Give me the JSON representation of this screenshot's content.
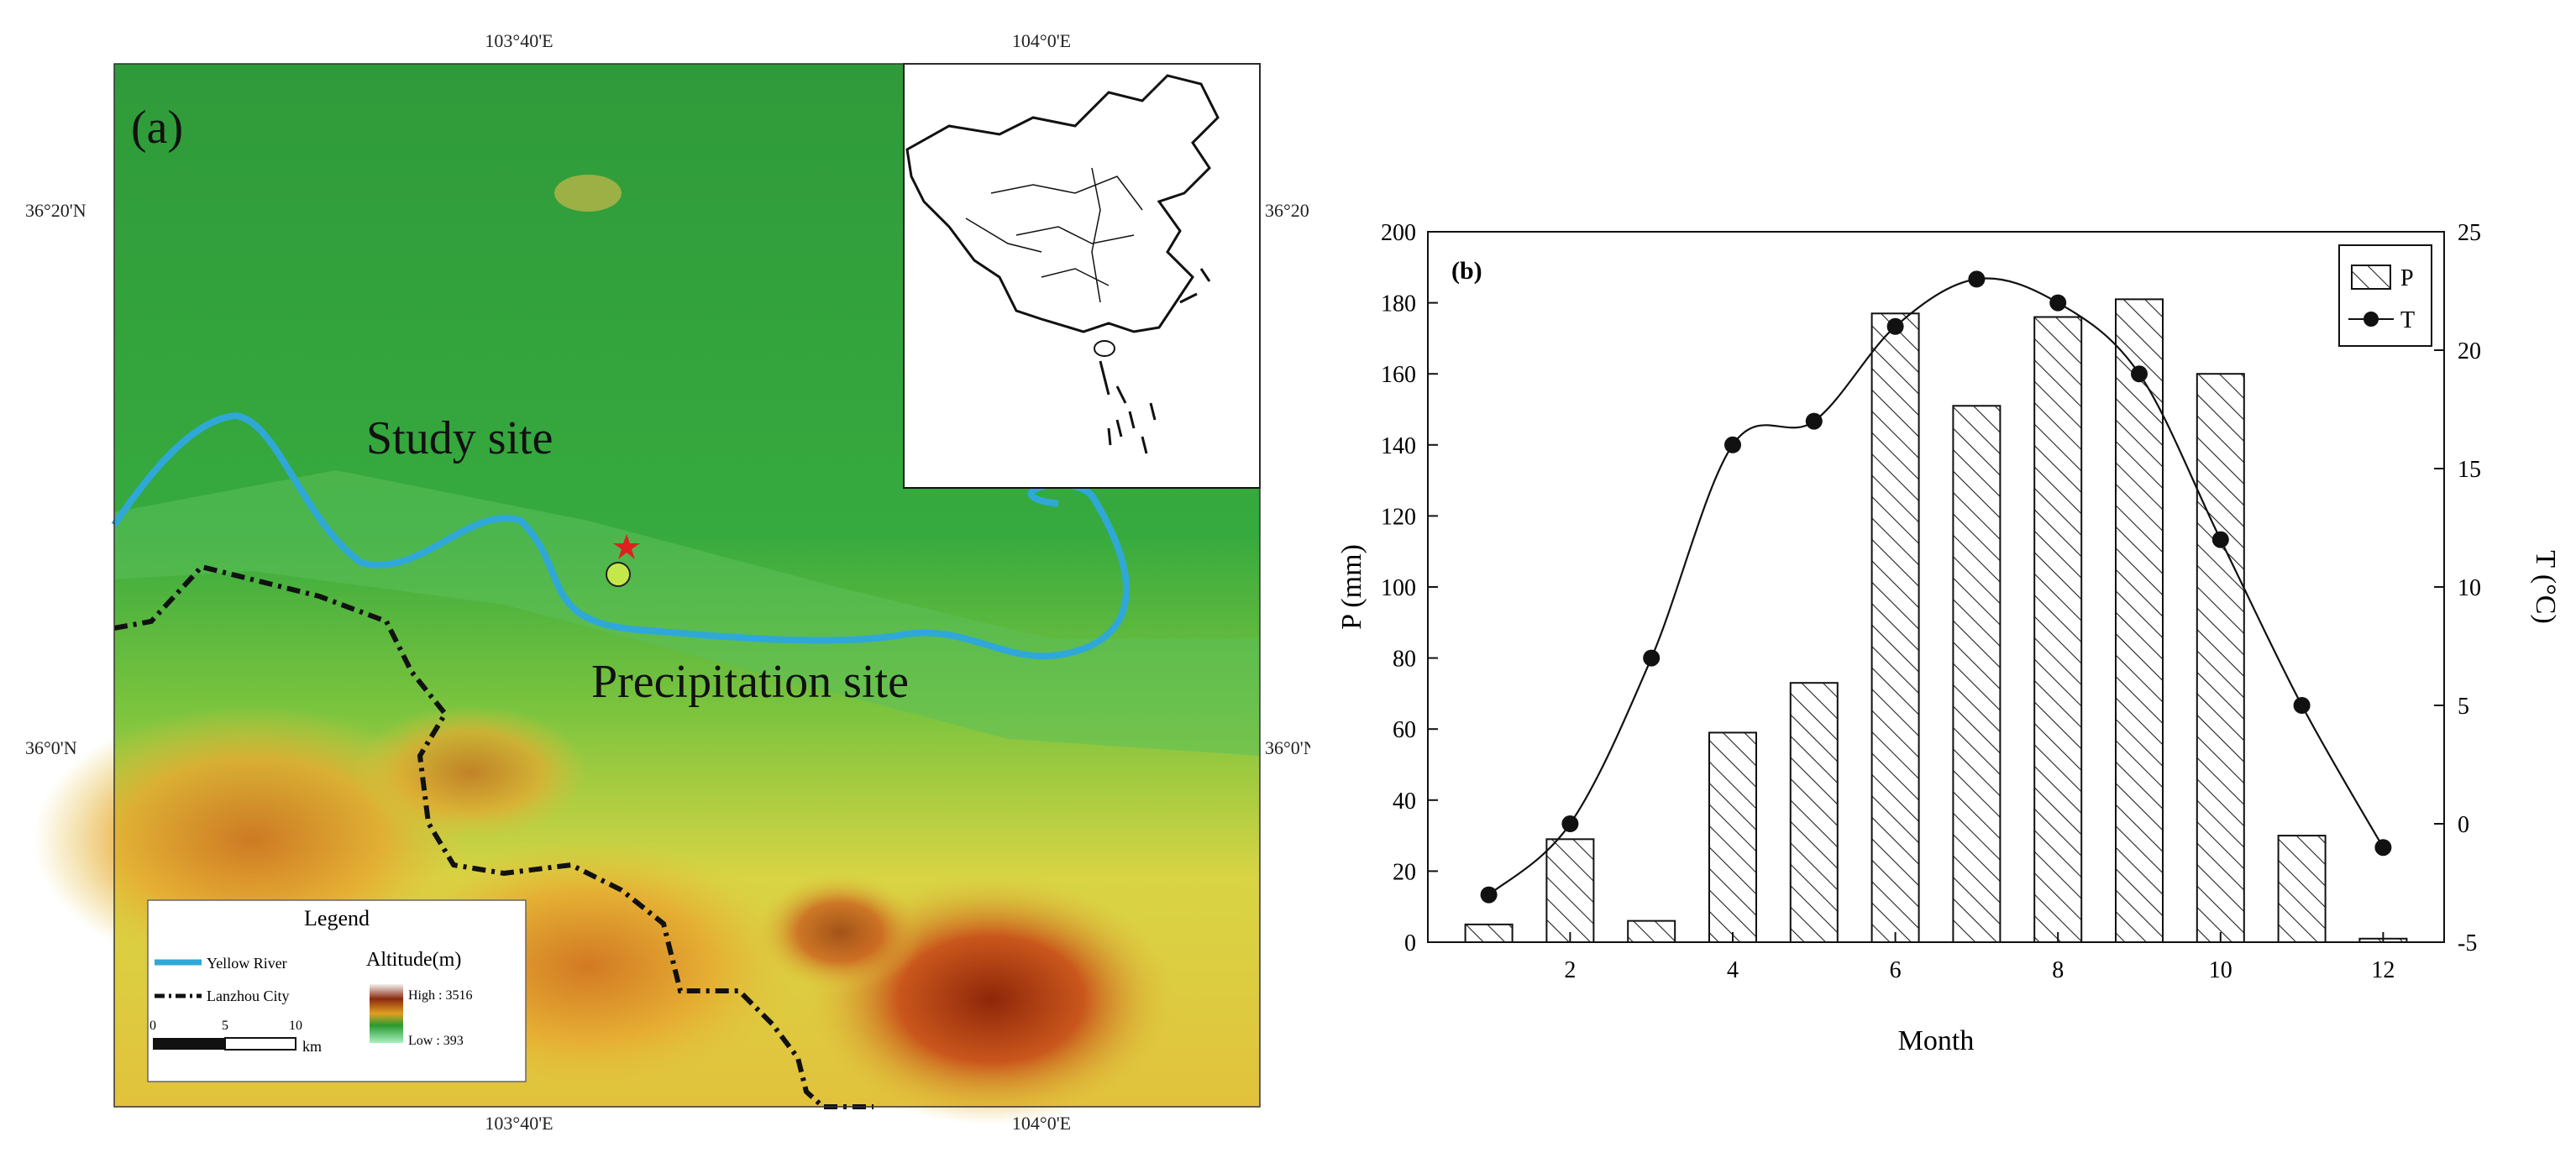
{
  "panel_a": {
    "label": "(a)",
    "top_lon_labels": [
      "103°40'E",
      "104°0'E"
    ],
    "bottom_lon_labels": [
      "103°40'E",
      "104°0'E"
    ],
    "left_lat_labels": [
      "36°20'N",
      "36°0'N"
    ],
    "right_lat_labels": [
      "36°20'N",
      "36°0'N"
    ],
    "study_site_label": "Study site",
    "precip_site_label": "Precipitation site",
    "legend": {
      "title": "Legend",
      "river_label": "Yellow River",
      "city_label": "Lanzhou City",
      "altitude_title": "Altitude(m)",
      "high_label": "High : 3516",
      "low_label": "Low : 393",
      "scale_ticks": [
        "0",
        "5",
        "10"
      ],
      "scale_unit": "km",
      "colors": {
        "river": "#2fa8d8",
        "boundary": "#111111"
      }
    },
    "colors": {
      "low": "#22a83a",
      "mid": "#e8e64a",
      "high": "#9a2a08",
      "star": "#e02020",
      "circle": "#c4e84a"
    }
  },
  "chart_data": {
    "type": "bar",
    "panel_label": "(b)",
    "categories": [
      1,
      2,
      3,
      4,
      5,
      6,
      7,
      8,
      9,
      10,
      11,
      12
    ],
    "series": [
      {
        "name": "P",
        "type": "bar",
        "axis": "left",
        "hatch": "diagonal",
        "values": [
          5,
          29,
          6,
          59,
          73,
          177,
          151,
          176,
          181,
          160,
          30,
          1
        ]
      },
      {
        "name": "T",
        "type": "line",
        "axis": "right",
        "marker": "circle",
        "values": [
          -3,
          0,
          7,
          16,
          17,
          21,
          23,
          22,
          19,
          12,
          5,
          -1
        ]
      }
    ],
    "xlabel": "Month",
    "ylabel": "P (mm)",
    "y2label": "T (°C)",
    "x_ticks": [
      "2",
      "4",
      "6",
      "8",
      "10",
      "12"
    ],
    "ylim": [
      0,
      200
    ],
    "y_ticks": [
      "0",
      "20",
      "40",
      "60",
      "80",
      "100",
      "120",
      "140",
      "160",
      "180",
      "200"
    ],
    "y2lim": [
      -5,
      25
    ],
    "y2_ticks": [
      "-5",
      "0",
      "5",
      "10",
      "15",
      "20",
      "25"
    ],
    "legend_position": "top-right",
    "grid": false
  }
}
